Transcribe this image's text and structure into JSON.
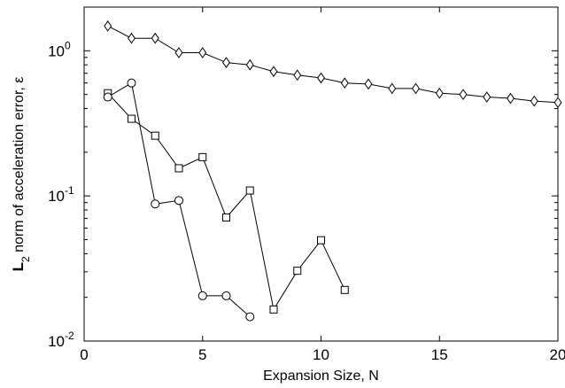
{
  "chart_data": {
    "type": "line",
    "xlabel": "Expansion Size, N",
    "ylabel": {
      "bold": "L",
      "subscript": "2",
      "rest": " norm of acceleration error, ε"
    },
    "xlim": [
      0,
      20
    ],
    "ylim": [
      0.01,
      2
    ],
    "y_scale": "log",
    "grid": false,
    "x_ticks": [
      {
        "value": 0,
        "label": "0"
      },
      {
        "value": 5,
        "label": "5"
      },
      {
        "value": 10,
        "label": "10"
      },
      {
        "value": 15,
        "label": "15"
      },
      {
        "value": 20,
        "label": "20"
      }
    ],
    "y_ticks": [
      {
        "value": 1,
        "base": "10",
        "exp": "0"
      },
      {
        "value": 0.1,
        "base": "10",
        "exp": "-1"
      },
      {
        "value": 0.01,
        "base": "10",
        "exp": "-2"
      }
    ],
    "series": [
      {
        "marker": "diamond",
        "color": "#000000",
        "x": [
          1,
          2,
          3,
          4,
          5,
          6,
          7,
          8,
          9,
          10,
          11,
          12,
          13,
          14,
          15,
          16,
          17,
          18,
          19,
          20
        ],
        "y": [
          1.48,
          1.22,
          1.22,
          0.97,
          0.97,
          0.83,
          0.8,
          0.72,
          0.68,
          0.65,
          0.6,
          0.59,
          0.55,
          0.55,
          0.51,
          0.5,
          0.48,
          0.47,
          0.45,
          0.44
        ]
      },
      {
        "marker": "square",
        "color": "#000000",
        "x": [
          1,
          2,
          3,
          4,
          5,
          6,
          7,
          8,
          9,
          10,
          11
        ],
        "y": [
          0.51,
          0.34,
          0.26,
          0.155,
          0.185,
          0.071,
          0.109,
          0.0165,
          0.0305,
          0.0495,
          0.0225
        ]
      },
      {
        "marker": "circle",
        "color": "#000000",
        "x": [
          1,
          2,
          3,
          4,
          5,
          6,
          7
        ],
        "y": [
          0.48,
          0.6,
          0.088,
          0.093,
          0.0205,
          0.0205,
          0.0147
        ]
      }
    ]
  }
}
